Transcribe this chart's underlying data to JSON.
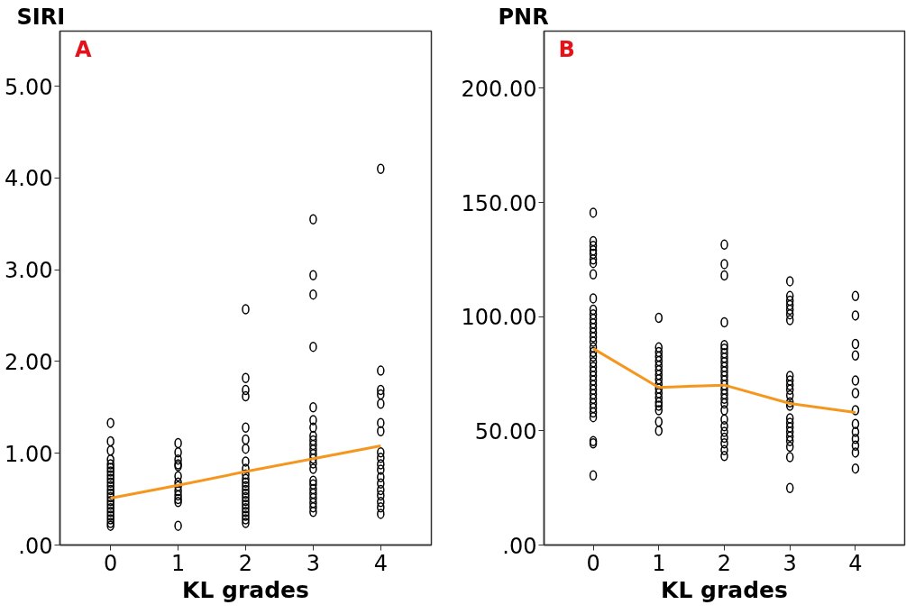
{
  "chart_data": [
    {
      "type": "scatter",
      "ylabel": "SIRI",
      "xlabel": "KL grades",
      "annotations": [
        "A"
      ],
      "xlim": [
        -0.75,
        4.75
      ],
      "ylim": [
        0,
        5.6
      ],
      "xticks": [
        0,
        1,
        2,
        3,
        4
      ],
      "yticks": [
        {
          "value": 0,
          "label": ".00"
        },
        {
          "value": 1,
          "label": "1.00"
        },
        {
          "value": 2,
          "label": "2.00"
        },
        {
          "value": 3,
          "label": "3.00"
        },
        {
          "value": 4,
          "label": "4.00"
        },
        {
          "value": 5,
          "label": "5.00"
        }
      ],
      "series": [
        {
          "color": "#000000",
          "marker": "circle",
          "x": [
            0,
            0,
            0,
            0,
            0,
            0,
            0,
            0,
            0,
            0,
            0,
            0,
            0,
            0,
            0,
            0,
            0,
            0,
            0,
            0,
            0,
            0,
            1,
            1,
            1,
            1,
            1,
            1,
            1,
            1,
            1,
            1,
            1,
            1,
            1,
            2,
            2,
            2,
            2,
            2,
            2,
            2,
            2,
            2,
            2,
            2,
            2,
            2,
            2,
            2,
            2,
            2,
            2,
            2,
            2,
            2,
            2,
            2,
            3,
            3,
            3,
            3,
            3,
            3,
            3,
            3,
            3,
            3,
            3,
            3,
            3,
            3,
            3,
            3,
            3,
            3,
            3,
            3,
            3,
            3,
            3,
            4,
            4,
            4,
            4,
            4,
            4,
            4,
            4,
            4,
            4,
            4,
            4,
            4,
            4,
            4,
            4,
            4,
            4
          ],
          "values": [
            1.33,
            1.13,
            1.03,
            0.93,
            0.88,
            0.84,
            0.8,
            0.76,
            0.72,
            0.68,
            0.64,
            0.6,
            0.56,
            0.52,
            0.48,
            0.44,
            0.4,
            0.36,
            0.32,
            0.28,
            0.24,
            0.21,
            1.11,
            1.01,
            0.93,
            0.88,
            0.86,
            0.75,
            0.68,
            0.64,
            0.59,
            0.54,
            0.5,
            0.47,
            0.21,
            2.57,
            1.82,
            1.69,
            1.62,
            1.28,
            1.15,
            1.05,
            0.91,
            0.83,
            0.77,
            0.72,
            0.68,
            0.64,
            0.6,
            0.56,
            0.52,
            0.48,
            0.44,
            0.4,
            0.36,
            0.32,
            0.28,
            0.24,
            3.55,
            2.94,
            2.73,
            2.16,
            1.5,
            1.36,
            1.28,
            1.19,
            1.14,
            1.09,
            1.04,
            0.99,
            0.94,
            0.89,
            0.83,
            0.7,
            0.66,
            0.61,
            0.56,
            0.51,
            0.46,
            0.41,
            0.36,
            4.1,
            1.9,
            1.69,
            1.64,
            1.54,
            1.33,
            1.24,
            1.01,
            0.95,
            0.88,
            0.82,
            0.74,
            0.67,
            0.6,
            0.54,
            0.47,
            0.41,
            0.34
          ]
        },
        {
          "type": "line",
          "color": "#f5961e",
          "x": [
            0,
            1,
            2,
            3,
            4
          ],
          "values": [
            0.51,
            0.65,
            0.8,
            0.94,
            1.08
          ]
        }
      ]
    },
    {
      "type": "scatter",
      "ylabel": "PNR",
      "xlabel": "KL grades",
      "annotations": [
        "B"
      ],
      "xlim": [
        -0.75,
        4.75
      ],
      "ylim": [
        0,
        225
      ],
      "xticks": [
        0,
        1,
        2,
        3,
        4
      ],
      "yticks": [
        {
          "value": 0,
          "label": ".00"
        },
        {
          "value": 50,
          "label": "50.00"
        },
        {
          "value": 100,
          "label": "100.00"
        },
        {
          "value": 150,
          "label": "150.00"
        },
        {
          "value": 200,
          "label": "200.00"
        }
      ],
      "series": [
        {
          "color": "#000000",
          "marker": "circle",
          "x": [
            0,
            0,
            0,
            0,
            0,
            0,
            0,
            0,
            0,
            0,
            0,
            0,
            0,
            0,
            0,
            0,
            0,
            0,
            0,
            0,
            0,
            0,
            0,
            0,
            0,
            0,
            0,
            0,
            0,
            0,
            0,
            0,
            0,
            0,
            0,
            0,
            1,
            1,
            1,
            1,
            1,
            1,
            1,
            1,
            1,
            1,
            1,
            1,
            1,
            1,
            1,
            1,
            1,
            1,
            2,
            2,
            2,
            2,
            2,
            2,
            2,
            2,
            2,
            2,
            2,
            2,
            2,
            2,
            2,
            2,
            2,
            2,
            2,
            2,
            2,
            2,
            2,
            2,
            2,
            2,
            3,
            3,
            3,
            3,
            3,
            3,
            3,
            3,
            3,
            3,
            3,
            3,
            3,
            3,
            3,
            3,
            3,
            3,
            3,
            3,
            3,
            3,
            3,
            4,
            4,
            4,
            4,
            4,
            4,
            4,
            4,
            4,
            4,
            4,
            4,
            4
          ],
          "values": [
            145.5,
            133,
            131,
            129,
            127.5,
            125,
            123.5,
            118.5,
            108,
            103,
            101,
            99,
            97,
            95,
            93,
            91,
            89,
            86.5,
            84.5,
            82.5,
            80,
            78,
            76,
            74,
            72,
            70,
            68,
            66,
            64,
            62,
            60,
            58,
            56,
            45.5,
            44.5,
            30.5,
            99.5,
            86.5,
            84.5,
            82.5,
            80.5,
            78.5,
            76.5,
            74.5,
            72.5,
            70.5,
            68.5,
            66.5,
            64.5,
            62.5,
            61,
            59,
            54,
            50,
            131.5,
            123,
            118,
            97.5,
            87.5,
            86,
            84,
            82,
            80,
            78,
            76,
            74,
            72,
            70,
            68,
            66,
            64,
            62,
            59,
            55,
            52,
            49.5,
            47,
            44.5,
            41.5,
            39,
            115.5,
            109,
            107,
            105,
            103,
            101,
            98.5,
            74,
            72,
            70,
            68,
            65.5,
            62.5,
            61,
            55.5,
            53.5,
            51.5,
            49.5,
            47.5,
            45.5,
            43,
            38.5,
            25,
            109,
            100.5,
            88,
            83,
            72,
            66.5,
            59,
            53,
            49.5,
            46.5,
            43.5,
            40.5,
            33.5
          ]
        },
        {
          "type": "line",
          "color": "#f5961e",
          "x": [
            0,
            1,
            2,
            3,
            4
          ],
          "values": [
            86,
            69,
            70,
            62,
            58
          ]
        }
      ]
    }
  ]
}
